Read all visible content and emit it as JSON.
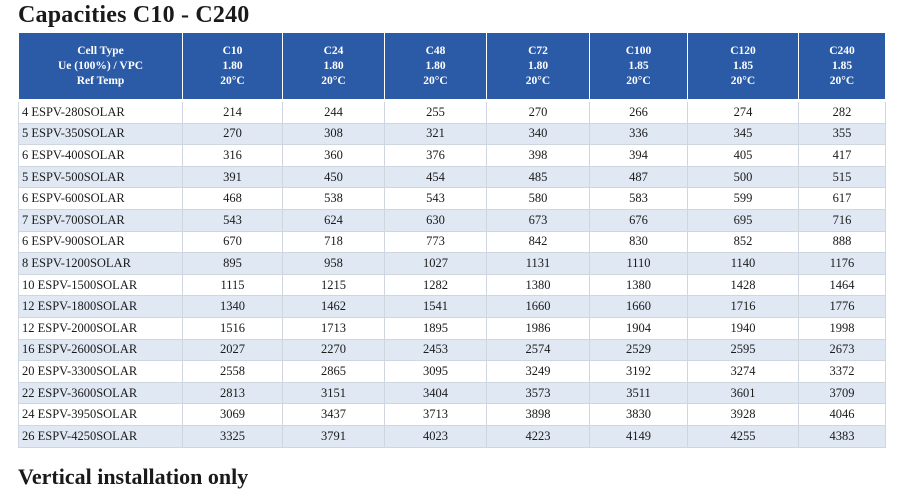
{
  "title": "Capacities C10 - C240",
  "footer": "Vertical installation only",
  "table": {
    "header": [
      [
        "Cell Type",
        "Ue (100%) / VPC",
        "Ref Temp"
      ],
      [
        "C10",
        "1.80",
        "20°C"
      ],
      [
        "C24",
        "1.80",
        "20°C"
      ],
      [
        "C48",
        "1.80",
        "20°C"
      ],
      [
        "C72",
        "1.80",
        "20°C"
      ],
      [
        "C100",
        "1.85",
        "20°C"
      ],
      [
        "C120",
        "1.85",
        "20°C"
      ],
      [
        "C240",
        "1.85",
        "20°C"
      ]
    ],
    "rows": [
      [
        "4 ESPV-280SOLAR",
        "214",
        "244",
        "255",
        "270",
        "266",
        "274",
        "282"
      ],
      [
        "5 ESPV-350SOLAR",
        "270",
        "308",
        "321",
        "340",
        "336",
        "345",
        "355"
      ],
      [
        "6 ESPV-400SOLAR",
        "316",
        "360",
        "376",
        "398",
        "394",
        "405",
        "417"
      ],
      [
        "5 ESPV-500SOLAR",
        "391",
        "450",
        "454",
        "485",
        "487",
        "500",
        "515"
      ],
      [
        "6 ESPV-600SOLAR",
        "468",
        "538",
        "543",
        "580",
        "583",
        "599",
        "617"
      ],
      [
        "7 ESPV-700SOLAR",
        "543",
        "624",
        "630",
        "673",
        "676",
        "695",
        "716"
      ],
      [
        "6 ESPV-900SOLAR",
        "670",
        "718",
        "773",
        "842",
        "830",
        "852",
        "888"
      ],
      [
        "8 ESPV-1200SOLAR",
        "895",
        "958",
        "1027",
        "1131",
        "1110",
        "1140",
        "1176"
      ],
      [
        "10 ESPV-1500SOLAR",
        "1115",
        "1215",
        "1282",
        "1380",
        "1380",
        "1428",
        "1464"
      ],
      [
        "12 ESPV-1800SOLAR",
        "1340",
        "1462",
        "1541",
        "1660",
        "1660",
        "1716",
        "1776"
      ],
      [
        "12 ESPV-2000SOLAR",
        "1516",
        "1713",
        "1895",
        "1986",
        "1904",
        "1940",
        "1998"
      ],
      [
        "16 ESPV-2600SOLAR",
        "2027",
        "2270",
        "2453",
        "2574",
        "2529",
        "2595",
        "2673"
      ],
      [
        "20 ESPV-3300SOLAR",
        "2558",
        "2865",
        "3095",
        "3249",
        "3192",
        "3274",
        "3372"
      ],
      [
        "22 ESPV-3600SOLAR",
        "2813",
        "3151",
        "3404",
        "3573",
        "3511",
        "3601",
        "3709"
      ],
      [
        "24 ESPV-3950SOLAR",
        "3069",
        "3437",
        "3713",
        "3898",
        "3830",
        "3928",
        "4046"
      ],
      [
        "26 ESPV-4250SOLAR",
        "3325",
        "3791",
        "4023",
        "4223",
        "4149",
        "4255",
        "4383"
      ]
    ]
  }
}
